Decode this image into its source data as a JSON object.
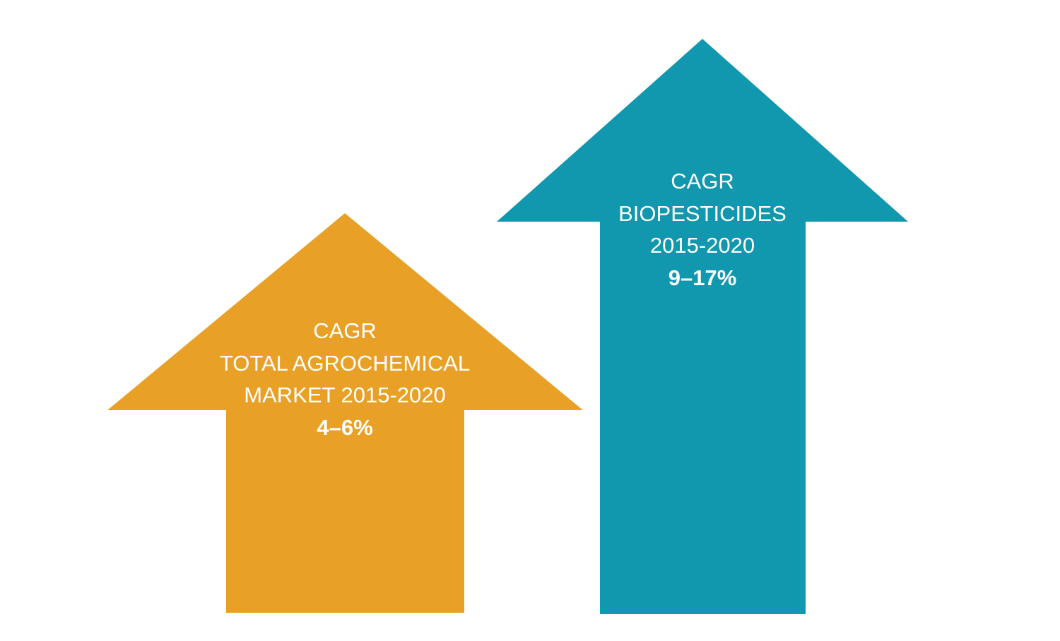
{
  "colors": {
    "background": "#ffffff",
    "agrochemical_arrow": "#E8A126",
    "biopesticides_arrow": "#1197AE",
    "label_text": "#ffffff"
  },
  "arrows": [
    {
      "id": "agrochemical",
      "lines": [
        "CAGR",
        "TOTAL AGROCHEMICAL",
        "MARKET 2015-2020"
      ],
      "value": "4–6%"
    },
    {
      "id": "biopesticides",
      "lines": [
        "CAGR",
        "BIOPESTICIDES",
        "2015-2020"
      ],
      "value": "9–17%"
    }
  ]
}
